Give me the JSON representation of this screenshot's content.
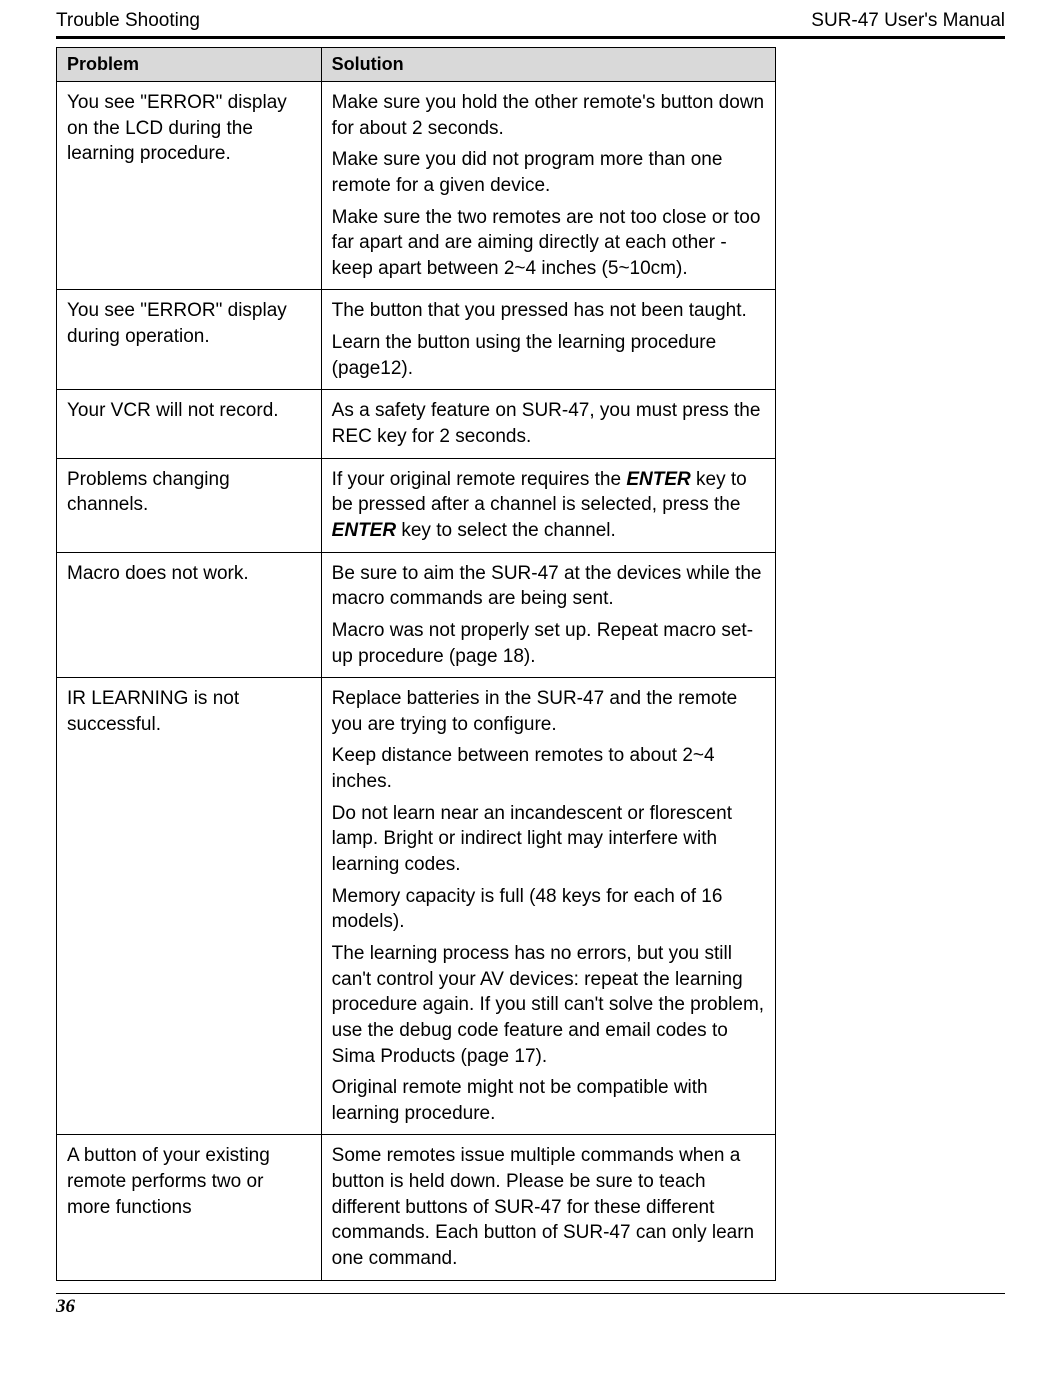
{
  "header": {
    "left": "Trouble Shooting",
    "right": "SUR-47 User's Manual"
  },
  "table": {
    "columns": {
      "problem": "Problem",
      "solution": "Solution"
    },
    "rows": [
      {
        "problem": "You see \"ERROR\" display on the LCD during the learning procedure.",
        "solution": [
          {
            "text": "Make sure you hold the other remote's button down for about 2 seconds."
          },
          {
            "text": "Make sure you did not program more than one remote for a given device."
          },
          {
            "text": "Make sure the two remotes are not too close or too far apart and are aiming directly at each other - keep apart between 2~4 inches (5~10cm)."
          }
        ]
      },
      {
        "problem": "You see \"ERROR\" display during operation.",
        "solution": [
          {
            "text": "The button that you pressed has not been taught."
          },
          {
            "text": "Learn the button using the learning procedure (page12)."
          }
        ]
      },
      {
        "problem": "Your VCR will not record.",
        "solution": [
          {
            "text": "As a safety feature on SUR-47, you must press the REC key for 2 seconds."
          }
        ]
      },
      {
        "problem": "Problems changing channels.",
        "solution": [
          {
            "segments": [
              {
                "text": "If your original remote requires the "
              },
              {
                "text": "ENTER",
                "emph": true
              },
              {
                "text": " key to be pressed after a channel is selected, press the "
              },
              {
                "text": "ENTER",
                "emph": true
              },
              {
                "text": " key to select the channel."
              }
            ]
          }
        ]
      },
      {
        "problem": "Macro does not work.",
        "solution": [
          {
            "text": "Be sure to aim the SUR-47 at the devices while the macro commands are being sent."
          },
          {
            "text": "Macro was not properly set up. Repeat macro set-up procedure (page 18)."
          }
        ]
      },
      {
        "problem": "IR LEARNING is not successful.",
        "solution": [
          {
            "text": "Replace batteries in the SUR-47 and the remote you are trying to configure."
          },
          {
            "text": "Keep distance between remotes to about 2~4 inches."
          },
          {
            "text": "Do not learn near an incandescent or florescent lamp. Bright or indirect light may interfere with learning codes."
          },
          {
            "text": "Memory capacity is full (48 keys for each of 16 models)."
          },
          {
            "text": "The learning process has no errors, but you still can't control your AV devices: repeat the learning procedure again. If you still can't solve the problem, use the debug code feature and email codes to Sima Products (page 17)."
          },
          {
            "text": "Original remote might not be compatible with learning procedure."
          }
        ]
      },
      {
        "problem": "A button of your existing remote performs two or more functions",
        "solution": [
          {
            "text": "Some remotes issue multiple commands when a button is held down. Please be sure to teach different buttons of SUR-47 for these different commands. Each button of SUR-47 can only learn one command."
          }
        ]
      }
    ]
  },
  "footer": {
    "page_number": "36"
  }
}
